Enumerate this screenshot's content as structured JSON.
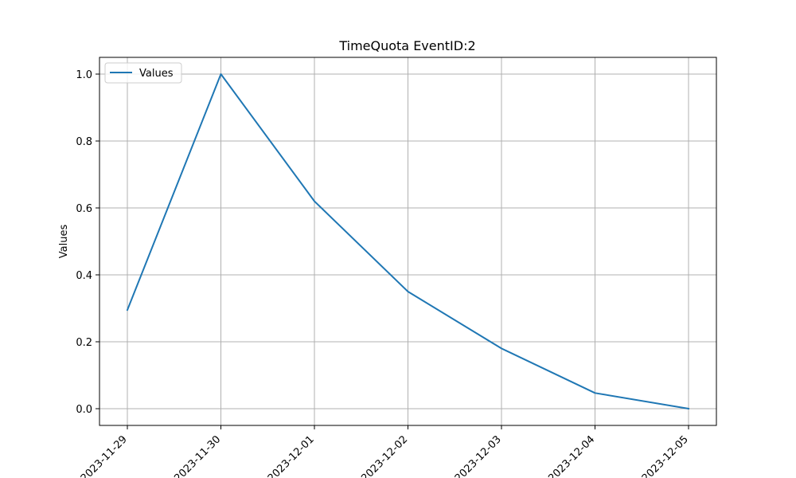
{
  "chart_data": {
    "type": "line",
    "title": "TimeQuota EventID:2",
    "xlabel": "",
    "ylabel": "Values",
    "x": [
      "2023-11-29",
      "2023-11-30",
      "2023-12-01",
      "2023-12-02",
      "2023-12-03",
      "2023-12-04",
      "2023-12-05"
    ],
    "series": [
      {
        "name": "Values",
        "color": "#1f77b4",
        "values": [
          0.295,
          1.0,
          0.62,
          0.35,
          0.18,
          0.047,
          0.0
        ]
      }
    ],
    "yticks": [
      "0.0",
      "0.2",
      "0.4",
      "0.6",
      "0.8",
      "1.0"
    ],
    "ylim": [
      -0.05,
      1.05
    ],
    "grid": true,
    "legend_position": "top-left"
  }
}
